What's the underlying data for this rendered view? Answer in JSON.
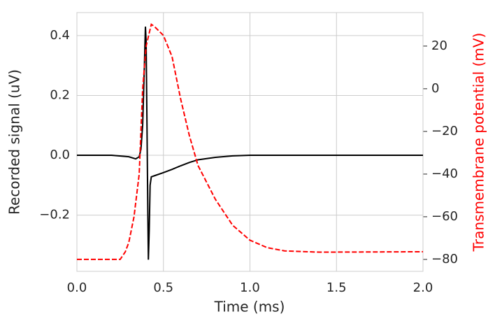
{
  "chart_data": {
    "type": "line",
    "xlabel": "Time (ms)",
    "ylabel": "Recorded signal (uV)",
    "y2label": "Transmembrane potential (mV)",
    "xlim": [
      0,
      2
    ],
    "ylim": [
      -0.388,
      0.477
    ],
    "y2lim": [
      -85.6,
      35.7
    ],
    "xticks": [
      {
        "value": 0,
        "label": "0.0"
      },
      0.5,
      {
        "value": 1,
        "label": "1.0"
      },
      1.5,
      {
        "value": 2,
        "label": "2.0"
      }
    ],
    "yticks": [
      {
        "value": -0.2,
        "label": "−0.2"
      },
      {
        "value": 0,
        "label": "0.0"
      },
      0.2,
      0.4
    ],
    "y2ticks": [
      {
        "value": -80,
        "label": "−80"
      },
      {
        "value": -60,
        "label": "−60"
      },
      {
        "value": -40,
        "label": "−40"
      },
      {
        "value": -20,
        "label": "−20"
      },
      0,
      20
    ],
    "grid": true,
    "y2label_color": "#ff0000",
    "series": [
      {
        "color": "#000000",
        "linestyle": "solid",
        "axis": "y",
        "x": [
          0,
          0.2,
          0.3,
          0.34,
          0.36,
          0.37,
          0.38,
          0.39,
          0.396,
          0.4,
          0.405,
          0.41,
          0.413,
          0.418,
          0.423,
          0.43,
          0.45,
          0.5,
          0.55,
          0.6,
          0.65,
          0.7,
          0.8,
          0.9,
          1.0,
          1.5,
          2.0
        ],
        "values": [
          0,
          0,
          -0.005,
          -0.012,
          -0.005,
          0.02,
          0.1,
          0.3,
          0.43,
          0.38,
          0.1,
          -0.2,
          -0.349,
          -0.25,
          -0.1,
          -0.072,
          -0.068,
          -0.058,
          -0.047,
          -0.035,
          -0.024,
          -0.015,
          -0.007,
          -0.002,
          0,
          0,
          0
        ]
      },
      {
        "color": "#ff0000",
        "linestyle": "dashed",
        "axis": "y2",
        "x": [
          0,
          0.25,
          0.28,
          0.3,
          0.33,
          0.36,
          0.38,
          0.4,
          0.43,
          0.45,
          0.5,
          0.55,
          0.6,
          0.65,
          0.7,
          0.8,
          0.9,
          1.0,
          1.1,
          1.2,
          1.4,
          2.0
        ],
        "values": [
          -80,
          -80,
          -76.4,
          -72,
          -60,
          -40,
          0,
          20,
          30.2,
          29,
          25,
          15,
          -5,
          -22,
          -36,
          -51.8,
          -64,
          -71,
          -74.5,
          -76,
          -76.6,
          -76.4
        ]
      }
    ]
  }
}
